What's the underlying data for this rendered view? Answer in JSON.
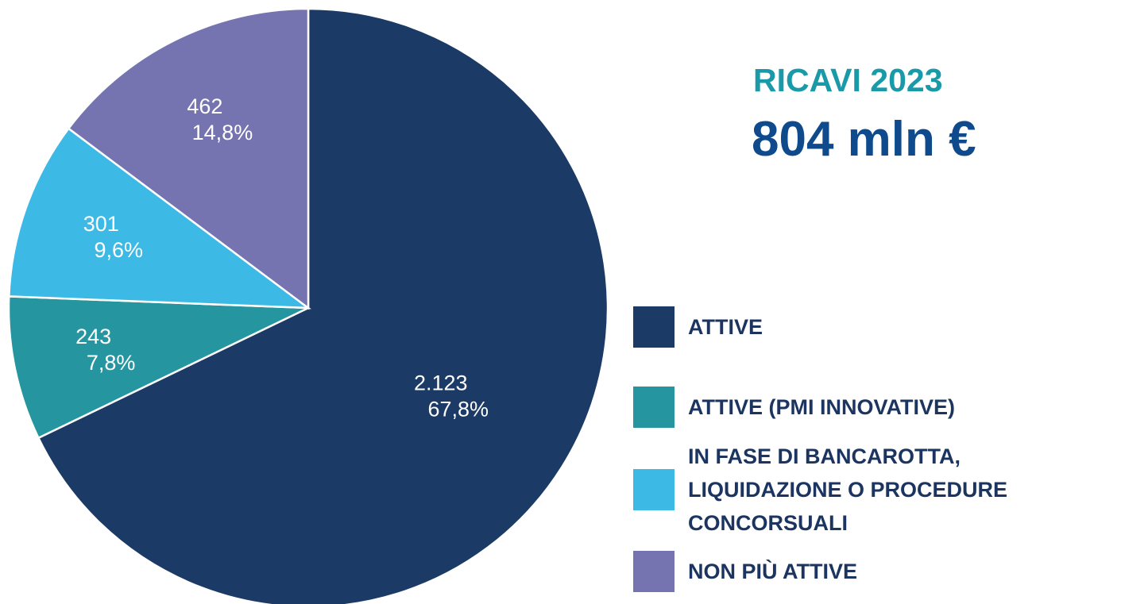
{
  "chart_data": {
    "type": "pie",
    "title": "RICAVI 2023",
    "subtitle": "804 mln €",
    "series": [
      {
        "name": "ATTIVE",
        "color": "#1b3a66"
      },
      {
        "name": "ATTIVE (PMI INNOVATIVE)",
        "color": "#2596a0"
      },
      {
        "name": "IN FASE DI BANCAROTTA,\nLIQUIDAZIONE O PROCEDURE\nCONCORSUALI",
        "color": "#3db9e6"
      },
      {
        "name": "NON PIÙ ATTIVE",
        "color": "#7574b0"
      }
    ],
    "values": [
      2123,
      243,
      301,
      462
    ],
    "value_labels": [
      "2.123",
      "243",
      "301",
      "462"
    ],
    "percentages": [
      67.8,
      7.8,
      9.6,
      14.8
    ],
    "percentage_labels": [
      "67,8%",
      "7,8%",
      "9,6%",
      "14,8%"
    ],
    "legend": "right"
  }
}
